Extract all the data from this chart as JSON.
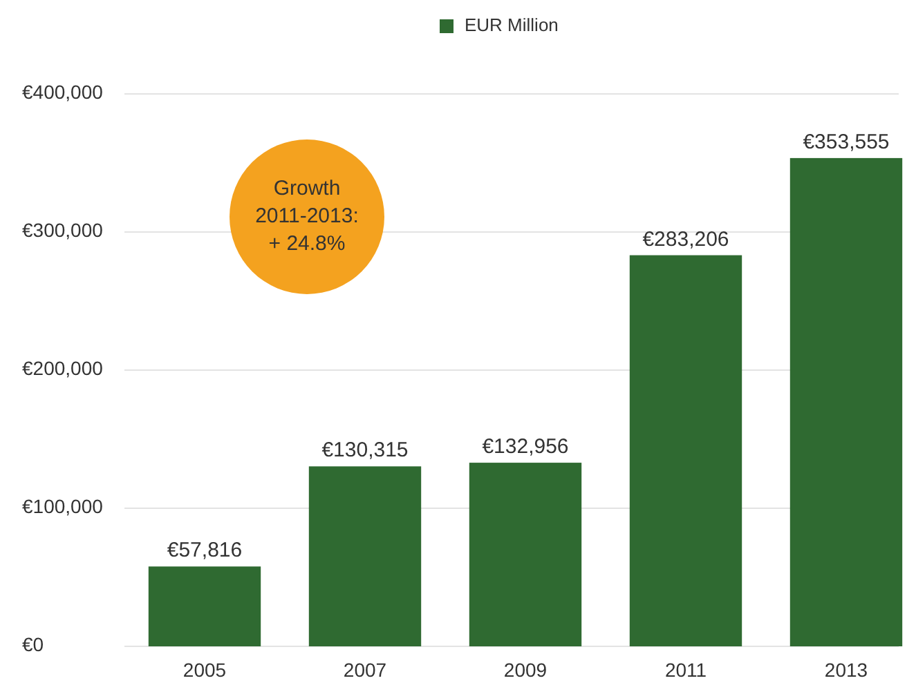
{
  "chart_data": {
    "type": "bar",
    "categories": [
      "2005",
      "2007",
      "2009",
      "2011",
      "2013"
    ],
    "series": [
      {
        "name": "EUR Million",
        "color": "#2f6a31",
        "values": [
          57816,
          130315,
          132956,
          283206,
          353555
        ],
        "value_labels": [
          "€57,816",
          "€130,315",
          "€132,956",
          "€283,206",
          "€353,555"
        ]
      }
    ],
    "ylim": [
      0,
      400000
    ],
    "yticks": [
      {
        "value": 0,
        "label": "€0"
      },
      {
        "value": 100000,
        "label": "€100,000"
      },
      {
        "value": 200000,
        "label": "€200,000"
      },
      {
        "value": 300000,
        "label": "€300,000"
      },
      {
        "value": 400000,
        "label": "€400,000"
      }
    ],
    "grid": "y",
    "legend": "top",
    "annotations": [
      "Growth",
      "2011-2013:",
      "+ 24.8%"
    ]
  }
}
